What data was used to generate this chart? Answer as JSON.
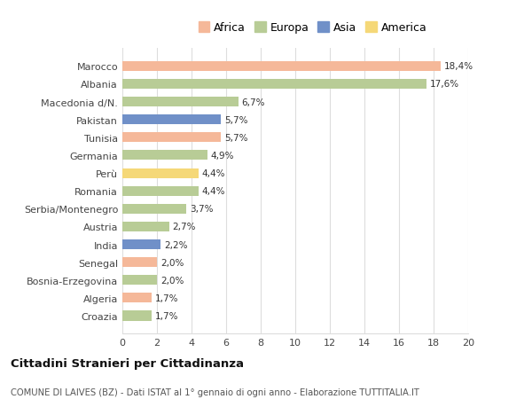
{
  "categories": [
    "Croazia",
    "Algeria",
    "Bosnia-Erzegovina",
    "Senegal",
    "India",
    "Austria",
    "Serbia/Montenegro",
    "Romania",
    "Perù",
    "Germania",
    "Tunisia",
    "Pakistan",
    "Macedonia d/N.",
    "Albania",
    "Marocco"
  ],
  "values": [
    1.7,
    1.7,
    2.0,
    2.0,
    2.2,
    2.7,
    3.7,
    4.4,
    4.4,
    4.9,
    5.7,
    5.7,
    6.7,
    17.6,
    18.4
  ],
  "labels": [
    "1,7%",
    "1,7%",
    "2,0%",
    "2,0%",
    "2,2%",
    "2,7%",
    "3,7%",
    "4,4%",
    "4,4%",
    "4,9%",
    "5,7%",
    "5,7%",
    "6,7%",
    "17,6%",
    "18,4%"
  ],
  "colors": [
    "#b8cc96",
    "#f5b899",
    "#b8cc96",
    "#f5b899",
    "#7090c8",
    "#b8cc96",
    "#b8cc96",
    "#b8cc96",
    "#f5d878",
    "#b8cc96",
    "#f5b899",
    "#7090c8",
    "#b8cc96",
    "#b8cc96",
    "#f5b899"
  ],
  "legend": [
    {
      "label": "Africa",
      "color": "#f5b899"
    },
    {
      "label": "Europa",
      "color": "#b8cc96"
    },
    {
      "label": "Asia",
      "color": "#7090c8"
    },
    {
      "label": "America",
      "color": "#f5d878"
    }
  ],
  "xlim": [
    0,
    20
  ],
  "xticks": [
    0,
    2,
    4,
    6,
    8,
    10,
    12,
    14,
    16,
    18,
    20
  ],
  "title": "Cittadini Stranieri per Cittadinanza",
  "subtitle": "COMUNE DI LAIVES (BZ) - Dati ISTAT al 1° gennaio di ogni anno - Elaborazione TUTTITALIA.IT",
  "bg_color": "#ffffff",
  "grid_color": "#dddddd",
  "bar_height": 0.55
}
